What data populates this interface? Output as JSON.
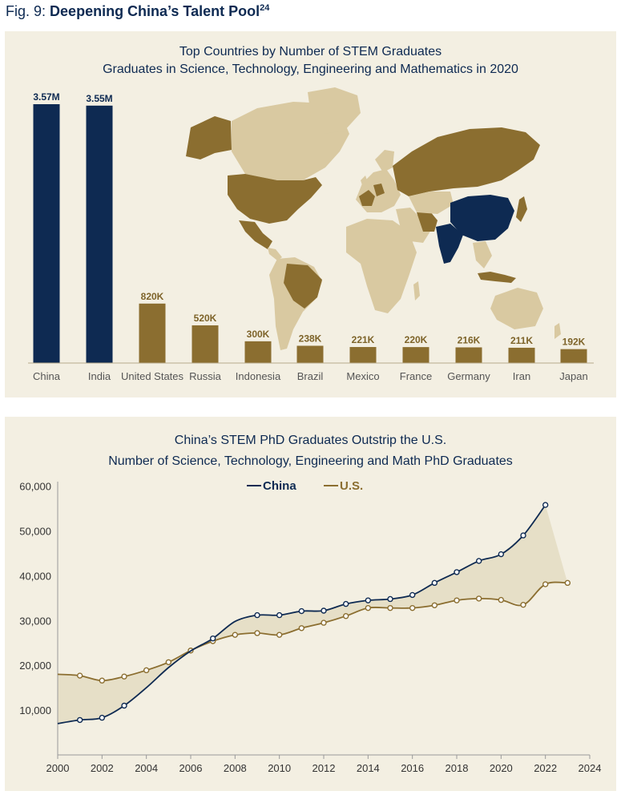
{
  "figure": {
    "label": "Fig. 9:",
    "title": "Deepening China’s Talent Pool",
    "footnote": "24"
  },
  "colors": {
    "china_navy": "#0e2a52",
    "gold": "#8b6e30",
    "gold_label": "#7d6329",
    "map_light": "#d9c9a1",
    "map_dark": "#8b6e30",
    "panel_bg": "#f3efe2",
    "band_fill": "#e6dfc7"
  },
  "chart_data": [
    {
      "type": "bar",
      "title": "Top Countries by Number of STEM Graduates",
      "subtitle": "Graduates in Science, Technology, Engineering and Mathematics in 2020",
      "categories": [
        "China",
        "India",
        "United States",
        "Russia",
        "Indonesia",
        "Brazil",
        "Mexico",
        "France",
        "Germany",
        "Iran",
        "Japan"
      ],
      "values": [
        3570000,
        3550000,
        820000,
        520000,
        300000,
        238000,
        221000,
        220000,
        216000,
        211000,
        192000
      ],
      "value_labels": [
        "3.57M",
        "3.55M",
        "820K",
        "520K",
        "300K",
        "238K",
        "221K",
        "220K",
        "216K",
        "211K",
        "192K"
      ],
      "highlight": [
        "China",
        "India"
      ],
      "legend": "map-inset",
      "grid": false
    },
    {
      "type": "line",
      "title": "China’s STEM PhD Graduates Outstrip the U.S.",
      "subtitle": "Number of Science, Technology, Engineering and Math PhD Graduates",
      "legend_position": "top-center",
      "grid": false,
      "x_ticks": [
        2000,
        2002,
        2004,
        2006,
        2008,
        2010,
        2012,
        2014,
        2016,
        2018,
        2020,
        2022,
        2024
      ],
      "y_ticks": [
        10000,
        20000,
        30000,
        40000,
        50000,
        60000
      ],
      "y_tick_labels": [
        "10,000",
        "20,000",
        "30,000",
        "40,000",
        "50,000",
        "60,000"
      ],
      "x_range": [
        2000,
        2024
      ],
      "y_range": [
        0,
        61000
      ],
      "series": [
        {
          "name": "China",
          "color": "#0e2a52",
          "x": [
            2000,
            2001,
            2002,
            2003,
            2004,
            2005,
            2006,
            2007,
            2008,
            2009,
            2010,
            2011,
            2012,
            2013,
            2014,
            2015,
            2016,
            2017,
            2018,
            2019,
            2020,
            2021,
            2022
          ],
          "values": [
            7000,
            7800,
            8300,
            11000,
            15000,
            19500,
            23200,
            26000,
            29800,
            31200,
            31200,
            32100,
            32200,
            33700,
            34500,
            34800,
            35700,
            38400,
            40800,
            43300,
            44800,
            49000,
            55800
          ],
          "markers": [
            false,
            true,
            true,
            true,
            false,
            false,
            false,
            true,
            false,
            true,
            true,
            true,
            true,
            true,
            true,
            true,
            true,
            true,
            true,
            true,
            true,
            true,
            true
          ]
        },
        {
          "name": "U.S.",
          "color": "#8b6e30",
          "x": [
            2000,
            2001,
            2002,
            2003,
            2004,
            2005,
            2006,
            2007,
            2008,
            2009,
            2010,
            2011,
            2012,
            2013,
            2014,
            2015,
            2016,
            2017,
            2018,
            2019,
            2020,
            2021,
            2022,
            2023
          ],
          "values": [
            18000,
            17700,
            16600,
            17500,
            18900,
            20700,
            23300,
            25400,
            26800,
            27200,
            26800,
            28300,
            29500,
            31000,
            32800,
            32800,
            32800,
            33400,
            34500,
            34900,
            34600,
            33500,
            38100,
            38400
          ],
          "markers": [
            false,
            true,
            true,
            true,
            true,
            true,
            true,
            true,
            true,
            true,
            true,
            true,
            true,
            true,
            true,
            true,
            true,
            true,
            true,
            true,
            true,
            true,
            true,
            true
          ]
        }
      ]
    }
  ]
}
